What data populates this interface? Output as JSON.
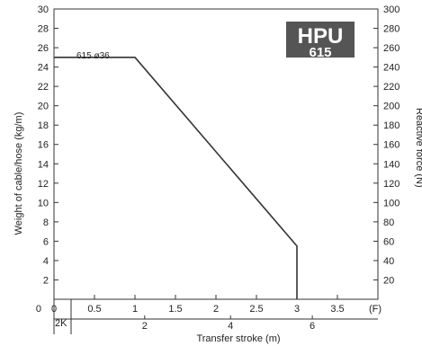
{
  "badge": {
    "line1": "HPU",
    "line2": "615",
    "bg_color": "#555555"
  },
  "chart_data": {
    "type": "line",
    "title": "",
    "xlabel": "Transfer stroke (m)",
    "ylabel": "Weight of cable/hose (kg/m)",
    "y2label": "Reactive force (N)",
    "x_unit_label": "(F)",
    "sub_axis_label": "2K",
    "xlim": [
      0,
      4
    ],
    "ylim": [
      0,
      30
    ],
    "y2lim": [
      0,
      300
    ],
    "x_ticks": [
      0,
      0.5,
      1,
      1.5,
      2,
      2.5,
      3,
      3.5
    ],
    "x_tick_labels": [
      "0",
      "0.5",
      "1",
      "1.5",
      "2",
      "2.5",
      "3",
      "3.5"
    ],
    "y_ticks": [
      2,
      4,
      6,
      8,
      10,
      12,
      14,
      16,
      18,
      20,
      22,
      24,
      26,
      28,
      30
    ],
    "y2_ticks": [
      20,
      40,
      60,
      80,
      100,
      120,
      140,
      160,
      180,
      200,
      220,
      240,
      260,
      280,
      300
    ],
    "sub_ticks": [
      2,
      4,
      6
    ],
    "sub_tick_positions_F": [
      1.12,
      2.18,
      3.19
    ],
    "grid": false,
    "series": [
      {
        "name": "615 ø36",
        "color": "#333333",
        "x": [
          0,
          1.0,
          3.0,
          3.0
        ],
        "y": [
          25,
          25,
          5.5,
          0
        ]
      }
    ]
  }
}
